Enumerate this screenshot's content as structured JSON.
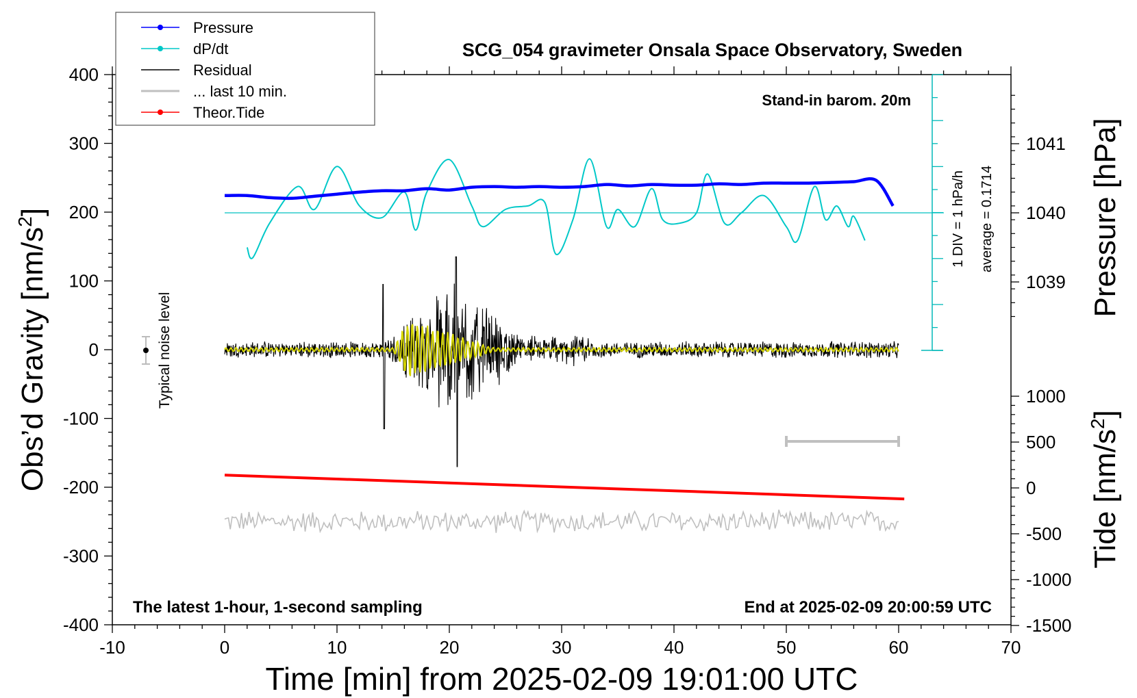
{
  "chart_data": {
    "type": "line",
    "title": "SCG_054 gravimeter Onsala Space Observatory, Sweden",
    "xlabel": "Time [min] from 2025-02-09 19:01:00 UTC",
    "ylabel_left_main": "Obs’d Gravity [nm/s",
    "ylabel_left_sup": "2",
    "ylabel_left_close": "]",
    "ylabel_right_top": "Pressure [hPa]",
    "ylabel_right_bottom_main": "Tide [nm/s",
    "ylabel_right_bottom_sup": "2",
    "ylabel_right_bottom_close": "]",
    "xlim": [
      -10,
      70
    ],
    "ylim": [
      -400,
      400
    ],
    "x_ticks": [
      "-10",
      "0",
      "10",
      "20",
      "30",
      "40",
      "50",
      "60",
      "70"
    ],
    "y_ticks": [
      "400",
      "300",
      "200",
      "100",
      "0",
      "-100",
      "-200",
      "-300",
      "-400"
    ],
    "pressure_ticks": [
      "1041",
      "1040",
      "1039"
    ],
    "tide_ticks": [
      "1000",
      "500",
      "0",
      "-500",
      "-1000",
      "-1500"
    ],
    "annotations": {
      "stand_in": "Stand-in barom. 20m",
      "latest": "The latest 1-hour, 1-second sampling",
      "end_at": "End at 2025-02-09 20:00:59 UTC",
      "noise": "Typical noise level",
      "div": "1 DIV = 1 hPa/h",
      "average": "average = 0.1714"
    },
    "legend": [
      {
        "label": "Pressure",
        "color": "#0000ff",
        "marker": true
      },
      {
        "label": "dP/dt",
        "color": "#00c8c8",
        "marker": true
      },
      {
        "label": "Residual",
        "color": "#000000",
        "marker": false
      },
      {
        "label": "... last 10 min.",
        "color": "#bfbfbf",
        "marker": false
      },
      {
        "label": "Theor.Tide",
        "color": "#ff0000",
        "marker": true
      }
    ],
    "series": [
      {
        "name": "Pressure",
        "color": "#0000ff",
        "axis": "pressure_hPa",
        "x": [
          0,
          2,
          4,
          6,
          8,
          10,
          12,
          14,
          16,
          18,
          20,
          22,
          24,
          26,
          28,
          30,
          32,
          34,
          36,
          38,
          40,
          42,
          44,
          46,
          48,
          50,
          52,
          54,
          56,
          58,
          59.5
        ],
        "values": [
          1040.25,
          1040.25,
          1040.22,
          1040.21,
          1040.24,
          1040.27,
          1040.3,
          1040.32,
          1040.32,
          1040.35,
          1040.33,
          1040.37,
          1040.38,
          1040.37,
          1040.38,
          1040.37,
          1040.38,
          1040.41,
          1040.39,
          1040.41,
          1040.4,
          1040.4,
          1040.42,
          1040.41,
          1040.43,
          1040.43,
          1040.43,
          1040.44,
          1040.45,
          1040.47,
          1040.1
        ]
      },
      {
        "name": "dP/dt",
        "color": "#00c8c8",
        "axis": "pressure_hPa",
        "x": [
          2,
          2.5,
          4,
          6.5,
          8,
          10,
          12,
          14,
          16,
          17,
          18,
          20,
          22,
          23,
          25,
          27,
          28.5,
          29.5,
          31,
          32.5,
          34,
          35,
          36.5,
          38,
          39,
          40.5,
          42,
          43,
          44.5,
          46,
          48,
          50,
          51,
          52.5,
          53.5,
          54.5,
          55.5,
          56,
          57
        ],
        "values": [
          1039.5,
          1039.35,
          1039.85,
          1040.38,
          1040.05,
          1040.67,
          1040.1,
          1039.93,
          1040.3,
          1039.75,
          1040.3,
          1040.77,
          1040.1,
          1039.8,
          1040.05,
          1040.1,
          1040.15,
          1039.4,
          1039.9,
          1040.78,
          1039.8,
          1040.05,
          1039.8,
          1040.35,
          1039.9,
          1039.85,
          1040.0,
          1040.56,
          1039.85,
          1040.0,
          1040.25,
          1039.8,
          1039.6,
          1040.38,
          1039.9,
          1040.1,
          1039.8,
          1039.95,
          1039.6
        ]
      },
      {
        "name": "Residual",
        "color": "#000000",
        "axis": "gravity",
        "x_range": [
          0,
          60
        ],
        "noise_amplitude": 10,
        "burst_x_range": [
          14,
          27
        ],
        "burst_peak": 135,
        "burst_min": -170
      },
      {
        "name": "... last 10 min.",
        "color": "#bfbfbf",
        "axis": "gravity",
        "x_range": [
          0,
          60
        ],
        "baseline": -250,
        "amplitude": 15
      },
      {
        "name": "Theor.Tide",
        "color": "#ff0000",
        "axis": "tide",
        "x": [
          0,
          60.5
        ],
        "values": [
          140,
          -120
        ]
      }
    ],
    "noise_level": {
      "x": -7,
      "y": 0,
      "range": [
        -20,
        20
      ]
    },
    "gray_bar": {
      "x": [
        50,
        60
      ],
      "y": 500
    }
  }
}
